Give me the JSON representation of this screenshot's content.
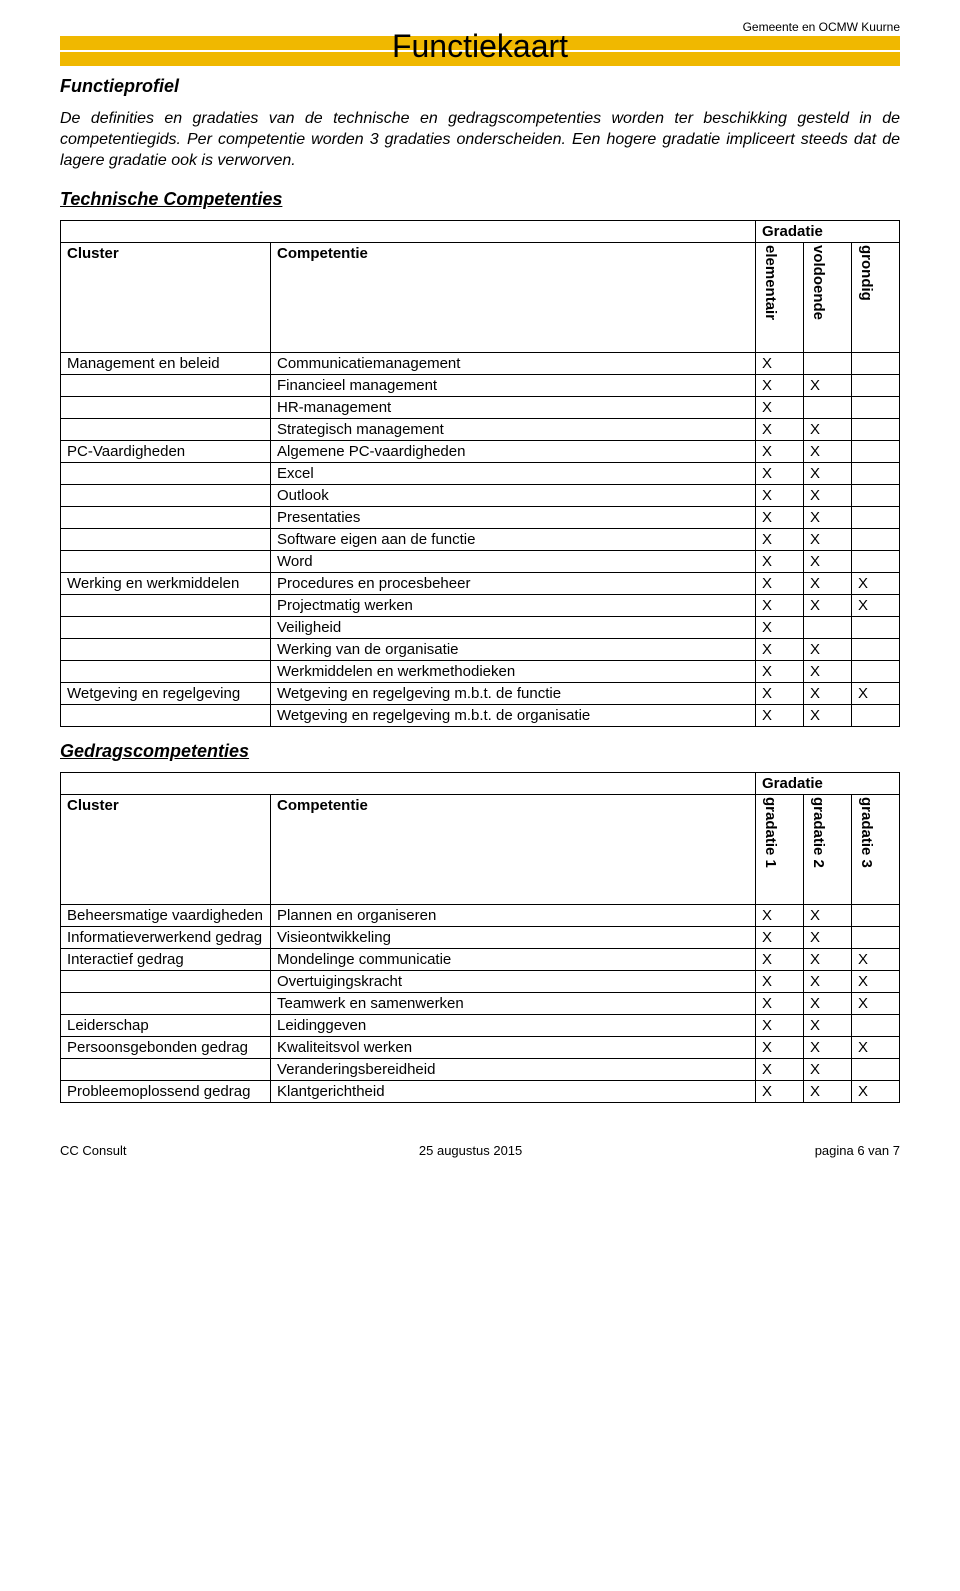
{
  "colors": {
    "gold": "#f0b800",
    "black": "#000000",
    "white": "#ffffff"
  },
  "header": {
    "org": "Gemeente en OCMW Kuurne",
    "title": "Functiekaart",
    "subtitle": "Functieprofiel"
  },
  "intro": "De definities en gradaties van de technische en gedragscompetenties worden ter beschikking gesteld in de competentiegids. Per competentie worden 3 gradaties onderscheiden. Een hogere gradatie impliceert steeds dat de lagere gradatie ook is verworven.",
  "tech": {
    "heading": "Technische Competenties",
    "grad_label": "Gradatie",
    "col_cluster": "Cluster",
    "col_comp": "Competentie",
    "grad_cols": [
      "elementair",
      "voldoende",
      "grondig"
    ],
    "rows": [
      {
        "cluster": "Management en beleid",
        "comp": "Communicatiemanagement",
        "g": [
          "X",
          "",
          ""
        ]
      },
      {
        "cluster": "",
        "comp": "Financieel management",
        "g": [
          "X",
          "X",
          ""
        ]
      },
      {
        "cluster": "",
        "comp": "HR-management",
        "g": [
          "X",
          "",
          ""
        ]
      },
      {
        "cluster": "",
        "comp": "Strategisch management",
        "g": [
          "X",
          "X",
          ""
        ]
      },
      {
        "cluster": "PC-Vaardigheden",
        "comp": "Algemene PC-vaardigheden",
        "g": [
          "X",
          "X",
          ""
        ]
      },
      {
        "cluster": "",
        "comp": "Excel",
        "g": [
          "X",
          "X",
          ""
        ]
      },
      {
        "cluster": "",
        "comp": "Outlook",
        "g": [
          "X",
          "X",
          ""
        ]
      },
      {
        "cluster": "",
        "comp": "Presentaties",
        "g": [
          "X",
          "X",
          ""
        ]
      },
      {
        "cluster": "",
        "comp": "Software eigen aan de functie",
        "g": [
          "X",
          "X",
          ""
        ]
      },
      {
        "cluster": "",
        "comp": "Word",
        "g": [
          "X",
          "X",
          ""
        ]
      },
      {
        "cluster": "Werking en werkmiddelen",
        "comp": "Procedures en procesbeheer",
        "g": [
          "X",
          "X",
          "X"
        ]
      },
      {
        "cluster": "",
        "comp": "Projectmatig werken",
        "g": [
          "X",
          "X",
          "X"
        ]
      },
      {
        "cluster": "",
        "comp": "Veiligheid",
        "g": [
          "X",
          "",
          ""
        ]
      },
      {
        "cluster": "",
        "comp": "Werking van de organisatie",
        "g": [
          "X",
          "X",
          ""
        ]
      },
      {
        "cluster": "",
        "comp": "Werkmiddelen en werkmethodieken",
        "g": [
          "X",
          "X",
          ""
        ]
      },
      {
        "cluster": "Wetgeving en regelgeving",
        "comp": "Wetgeving en regelgeving m.b.t. de functie",
        "g": [
          "X",
          "X",
          "X"
        ]
      },
      {
        "cluster": "",
        "comp": "Wetgeving en regelgeving m.b.t. de organisatie",
        "g": [
          "X",
          "X",
          ""
        ]
      }
    ]
  },
  "behav": {
    "heading": "Gedragscompetenties",
    "grad_label": "Gradatie",
    "col_cluster": "Cluster",
    "col_comp": "Competentie",
    "grad_cols": [
      "gradatie 1",
      "gradatie 2",
      "gradatie 3"
    ],
    "rows": [
      {
        "cluster": "Beheersmatige vaardigheden",
        "comp": "Plannen en organiseren",
        "g": [
          "X",
          "X",
          ""
        ]
      },
      {
        "cluster": "Informatieverwerkend gedrag",
        "comp": "Visieontwikkeling",
        "g": [
          "X",
          "X",
          ""
        ]
      },
      {
        "cluster": "Interactief gedrag",
        "comp": "Mondelinge communicatie",
        "g": [
          "X",
          "X",
          "X"
        ]
      },
      {
        "cluster": "",
        "comp": "Overtuigingskracht",
        "g": [
          "X",
          "X",
          "X"
        ]
      },
      {
        "cluster": "",
        "comp": "Teamwerk en samenwerken",
        "g": [
          "X",
          "X",
          "X"
        ]
      },
      {
        "cluster": "Leiderschap",
        "comp": "Leidinggeven",
        "g": [
          "X",
          "X",
          ""
        ]
      },
      {
        "cluster": "Persoonsgebonden gedrag",
        "comp": "Kwaliteitsvol werken",
        "g": [
          "X",
          "X",
          "X"
        ]
      },
      {
        "cluster": "",
        "comp": "Veranderingsbereidheid",
        "g": [
          "X",
          "X",
          ""
        ]
      },
      {
        "cluster": "Probleemoplossend gedrag",
        "comp": "Klantgerichtheid",
        "g": [
          "X",
          "X",
          "X"
        ]
      }
    ]
  },
  "footer": {
    "left": "CC Consult",
    "center": "25 augustus 2015",
    "right": "pagina 6 van 7"
  }
}
